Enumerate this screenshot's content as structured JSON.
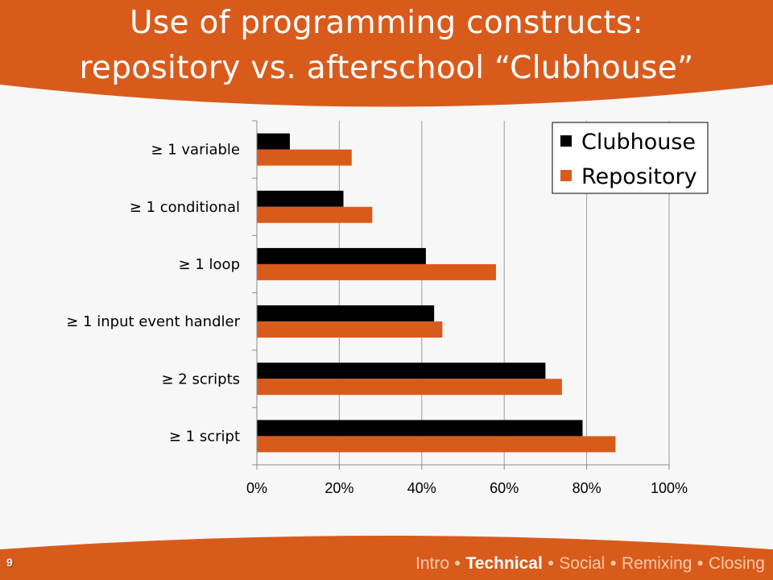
{
  "slide": {
    "title_line_1": "Use of programming constructs:",
    "title_line_2": "repository vs. afterschool “Clubhouse”",
    "number": "9",
    "accent_color": "#d95b1c"
  },
  "footer": {
    "nav": [
      {
        "label": "Intro",
        "active": false
      },
      {
        "label": "Technical",
        "active": true
      },
      {
        "label": "Social",
        "active": false
      },
      {
        "label": "Remixing",
        "active": false
      },
      {
        "label": "Closing",
        "active": false
      }
    ]
  },
  "chart_data": {
    "type": "bar",
    "orientation": "horizontal",
    "categories": [
      "≥ 1 variable",
      "≥ 1 conditional",
      "≥ 1 loop",
      "≥ 1 input event handler",
      "≥ 2 scripts",
      "≥ 1 script"
    ],
    "series": [
      {
        "name": "Clubhouse",
        "color": "#000000",
        "values": [
          8,
          21,
          41,
          43,
          70,
          79
        ]
      },
      {
        "name": "Repository",
        "color": "#d95b1c",
        "values": [
          23,
          28,
          58,
          45,
          74,
          87
        ]
      }
    ],
    "x_ticks": [
      "0%",
      "20%",
      "40%",
      "60%",
      "80%",
      "100%"
    ],
    "xlim": [
      0,
      100
    ],
    "unit": "%",
    "grid": true,
    "legend_position": "top-right"
  }
}
